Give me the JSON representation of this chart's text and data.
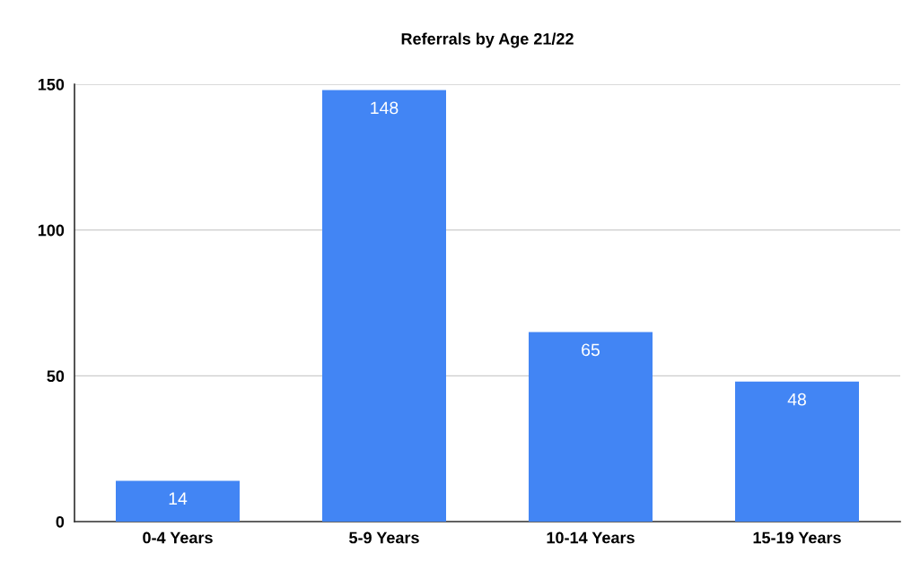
{
  "chart_data": {
    "type": "bar",
    "title": "Referrals by Age 21/22",
    "categories": [
      "0-4 Years",
      "5-9 Years",
      "10-14 Years",
      "15-19 Years"
    ],
    "values": [
      14,
      148,
      65,
      48
    ],
    "color": "#4285f4",
    "ylim": [
      0,
      150
    ],
    "yticks": [
      0,
      50,
      100,
      150
    ],
    "grid": "y",
    "data_labels": true
  }
}
